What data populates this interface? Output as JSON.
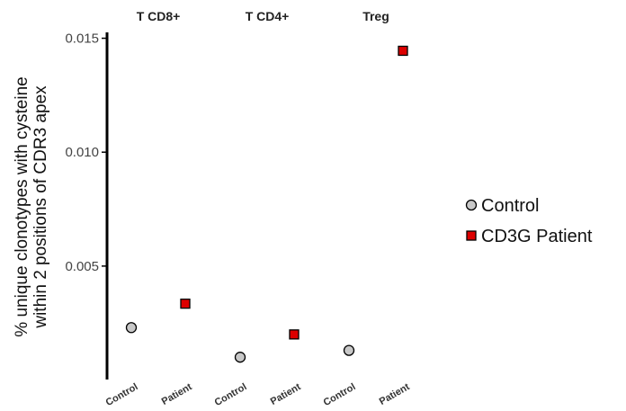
{
  "chart_data": {
    "type": "scatter",
    "title": "",
    "ylabel_lines": [
      "% unique clonotypes with cysteine",
      "within 2 positions of CDR3 apex"
    ],
    "xlabel": "",
    "ylim": [
      0.0001,
      0.0151
    ],
    "yticks": [
      0.005,
      0.01,
      0.015
    ],
    "ytick_labels": [
      "0.005",
      "0.010",
      "0.015"
    ],
    "grid": false,
    "legend_position": "right",
    "facets": [
      {
        "title": "T CD8+",
        "categories": [
          "Control",
          "Patient"
        ],
        "values": [
          0.0023,
          0.00335
        ]
      },
      {
        "title": "T CD4+",
        "categories": [
          "Control",
          "Patient"
        ],
        "values": [
          0.001,
          0.002
        ]
      },
      {
        "title": "Treg",
        "categories": [
          "Control",
          "Patient"
        ],
        "values": [
          0.0013,
          0.01445
        ]
      }
    ],
    "series": [
      {
        "name": "Control",
        "category": "Control",
        "marker": "circle",
        "color": "#c8c8c8"
      },
      {
        "name": "CD3G Patient",
        "category": "Patient",
        "marker": "square",
        "color": "#dd0000"
      }
    ]
  }
}
